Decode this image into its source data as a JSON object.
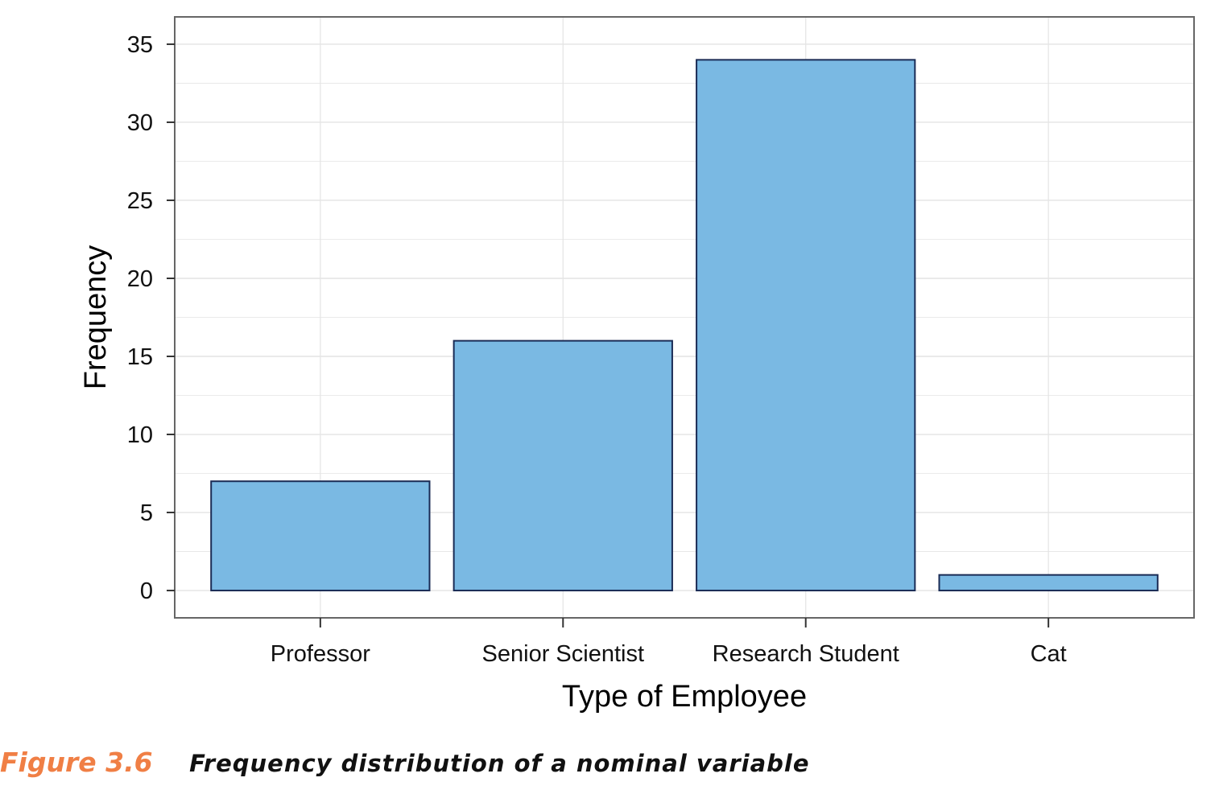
{
  "chart_data": {
    "type": "bar",
    "categories": [
      "Professor",
      "Senior Scientist",
      "Research Student",
      "Cat"
    ],
    "values": [
      7,
      16,
      34,
      1
    ],
    "xlabel": "Type of Employee",
    "ylabel": "Frequency",
    "ylim": [
      -1.75,
      36.75
    ],
    "yticks": [
      0,
      5,
      10,
      15,
      20,
      25,
      30,
      35
    ],
    "grid": true,
    "legend": "none",
    "colors": {
      "bar_fill": "#7ab9e3",
      "bar_stroke": "#1a2b55",
      "grid": "#e4e4e4",
      "frame": "#666666"
    }
  },
  "caption": {
    "number": "Figure 3.6",
    "text": "Frequency distribution of a nominal variable",
    "number_color": "#f07f45"
  }
}
